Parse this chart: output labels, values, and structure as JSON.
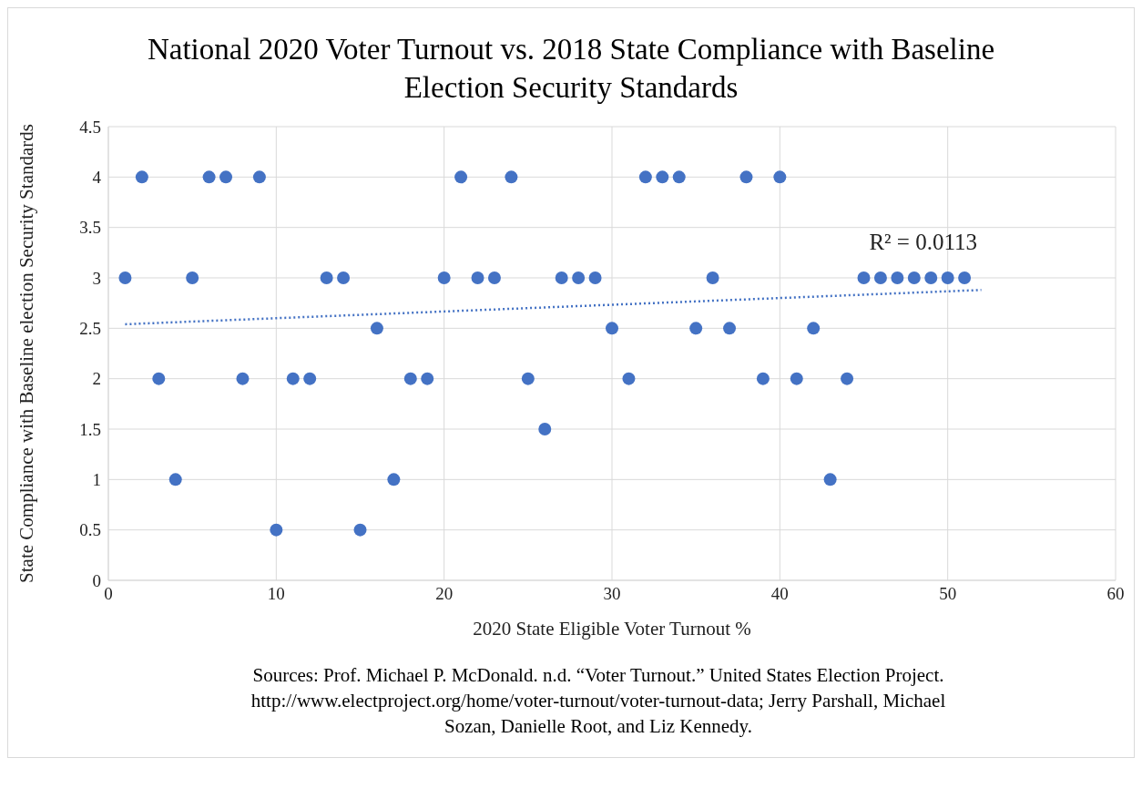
{
  "chart_data": {
    "type": "scatter",
    "title": "National 2020 Voter Turnout vs. 2018 State Compliance with Baseline Election Security Standards",
    "xlabel": "2020 State Eligible Voter Turnout %",
    "ylabel": "State Compliance with Baseline election Security Standards",
    "x": [
      1,
      2,
      3,
      4,
      5,
      6,
      7,
      8,
      9,
      10,
      11,
      12,
      13,
      14,
      15,
      16,
      17,
      18,
      19,
      20,
      21,
      22,
      23,
      24,
      25,
      26,
      27,
      28,
      29,
      30,
      31,
      32,
      33,
      34,
      35,
      36,
      37,
      38,
      39,
      40,
      41,
      42,
      43,
      44,
      45,
      46,
      47,
      48,
      49,
      50,
      51
    ],
    "series": [
      {
        "color": "#4472c4",
        "marker": "circle",
        "values": [
          3,
          4,
          2,
          1,
          3,
          4,
          4,
          2,
          4,
          0.5,
          2,
          2,
          3,
          3,
          0.5,
          2.5,
          1,
          2,
          2,
          3,
          4,
          3,
          3,
          4,
          2,
          1.5,
          3,
          3,
          3,
          2.5,
          2,
          4,
          4,
          4,
          2.5,
          3,
          2.5,
          4,
          2,
          4,
          2,
          2.5,
          1,
          2,
          3,
          3,
          3,
          3,
          3,
          3,
          3
        ]
      },
      {
        "type": "line",
        "color": "#4472c4",
        "line_style": "dotted",
        "marker": "none",
        "x": [
          1,
          52
        ],
        "values": [
          2.54,
          2.88
        ]
      }
    ],
    "xlim": [
      0,
      60
    ],
    "xticks": [
      0,
      10,
      20,
      30,
      40,
      50,
      60
    ],
    "ylim": [
      0,
      4.5
    ],
    "yticks": [
      0,
      0.5,
      1,
      1.5,
      2,
      2.5,
      3,
      3.5,
      4,
      4.5
    ],
    "grid": true,
    "annotations": [
      {
        "text": "R² = 0.0113",
        "x": 52,
        "y": 2.88
      },
      "Sources: Prof. Michael P. McDonald. n.d. “Voter Turnout.” United States Election Project. http://www.electproject.org/home/voter-turnout/voter-turnout-data; Jerry Parshall, Michael Sozan, Danielle Root, and Liz Kennedy."
    ]
  }
}
